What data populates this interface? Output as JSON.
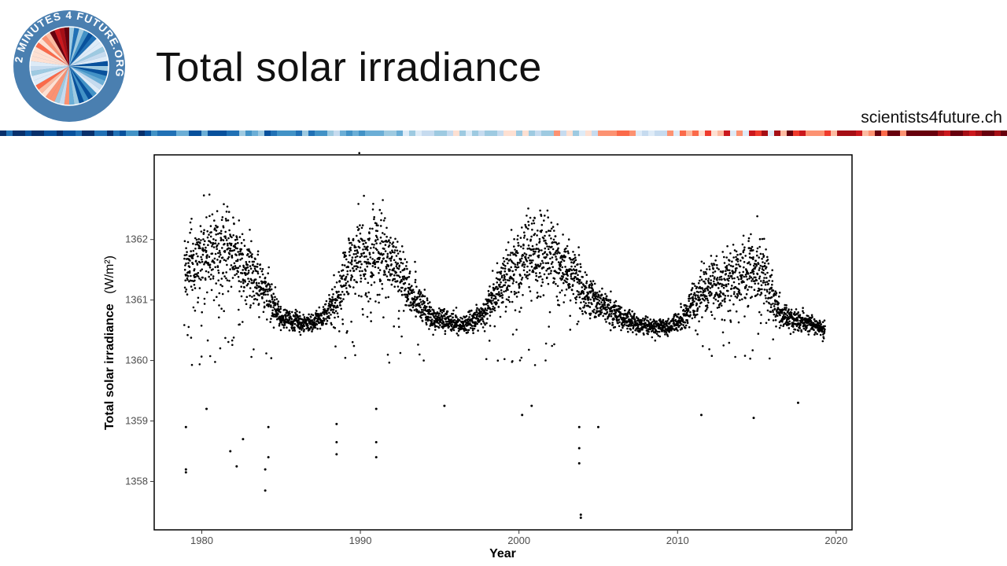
{
  "slide": {
    "title": "Total solar irradiance",
    "website": "scientists4future.ch"
  },
  "logo": {
    "ring_text": "2 MINUTES 4 FUTURE.ORG",
    "ring_color": "#4a7fb0"
  },
  "colors": {
    "accent_blue": "#4a7fb0",
    "stripe_cool": [
      "#08306b",
      "#08519c",
      "#2171b5",
      "#4292c6",
      "#6baed6",
      "#9ecae1",
      "#c6dbef",
      "#deebf7"
    ],
    "stripe_warm": [
      "#fee0d2",
      "#fcbba1",
      "#fc9272",
      "#fb6a4a",
      "#ef3b2c",
      "#cb181d",
      "#a50f15",
      "#67000d"
    ]
  },
  "chart_data": {
    "type": "scatter",
    "xlabel": "Year",
    "ylabel": "Total solar irradiance",
    "ylabel_unit": "(W/m²)",
    "xlim": [
      1977,
      2021
    ],
    "ylim": [
      1357.2,
      1363.4
    ],
    "xticks": [
      1980,
      1990,
      2000,
      2010,
      2020
    ],
    "yticks": [
      1358,
      1359,
      1360,
      1361,
      1362
    ],
    "grid": false,
    "legend": "none",
    "marker_color": "#000000",
    "series_trend": {
      "x": [
        1978.9,
        1980.0,
        1981.0,
        1982.0,
        1983.0,
        1984.0,
        1985.0,
        1986.0,
        1986.7,
        1987.5,
        1988.5,
        1989.5,
        1990.5,
        1991.5,
        1992.5,
        1993.5,
        1994.5,
        1995.5,
        1996.5,
        1997.5,
        1998.5,
        1999.5,
        2000.5,
        2001.5,
        2002.5,
        2003.5,
        2004.5,
        2005.5,
        2006.5,
        2007.5,
        2008.5,
        2009.5,
        2010.5,
        2011.5,
        2012.5,
        2013.5,
        2014.5,
        2015.5,
        2016.5,
        2017.5,
        2018.5,
        2019.3
      ],
      "y": [
        1361.5,
        1361.75,
        1361.8,
        1361.75,
        1361.5,
        1361.15,
        1360.7,
        1360.65,
        1360.6,
        1360.7,
        1361.0,
        1361.65,
        1361.8,
        1361.75,
        1361.4,
        1361.0,
        1360.7,
        1360.65,
        1360.6,
        1360.7,
        1361.05,
        1361.5,
        1361.7,
        1361.75,
        1361.65,
        1361.35,
        1361.05,
        1360.85,
        1360.7,
        1360.6,
        1360.55,
        1360.55,
        1360.75,
        1361.15,
        1361.3,
        1361.35,
        1361.5,
        1361.45,
        1360.75,
        1360.65,
        1360.6,
        1360.5
      ]
    },
    "outliers": [
      {
        "x": 1979.0,
        "y": 1358.15
      },
      {
        "x": 1979.0,
        "y": 1358.2
      },
      {
        "x": 1979.0,
        "y": 1358.9
      },
      {
        "x": 1980.3,
        "y": 1359.2
      },
      {
        "x": 1981.8,
        "y": 1358.5
      },
      {
        "x": 1982.2,
        "y": 1358.25
      },
      {
        "x": 1982.6,
        "y": 1358.7
      },
      {
        "x": 1984.0,
        "y": 1357.85
      },
      {
        "x": 1984.0,
        "y": 1358.2
      },
      {
        "x": 1984.2,
        "y": 1358.4
      },
      {
        "x": 1984.2,
        "y": 1358.9
      },
      {
        "x": 1988.5,
        "y": 1358.45
      },
      {
        "x": 1988.5,
        "y": 1358.65
      },
      {
        "x": 1988.5,
        "y": 1358.95
      },
      {
        "x": 1991.0,
        "y": 1358.4
      },
      {
        "x": 1991.0,
        "y": 1358.65
      },
      {
        "x": 1991.0,
        "y": 1359.2
      },
      {
        "x": 1995.3,
        "y": 1359.25
      },
      {
        "x": 2000.2,
        "y": 1359.1
      },
      {
        "x": 2000.8,
        "y": 1359.25
      },
      {
        "x": 2003.9,
        "y": 1357.4
      },
      {
        "x": 2003.9,
        "y": 1357.45
      },
      {
        "x": 2003.8,
        "y": 1358.3
      },
      {
        "x": 2003.8,
        "y": 1358.55
      },
      {
        "x": 2003.8,
        "y": 1358.9
      },
      {
        "x": 2005.0,
        "y": 1358.9
      },
      {
        "x": 2011.5,
        "y": 1359.1
      },
      {
        "x": 2014.8,
        "y": 1359.05
      },
      {
        "x": 2017.6,
        "y": 1359.3
      }
    ]
  }
}
